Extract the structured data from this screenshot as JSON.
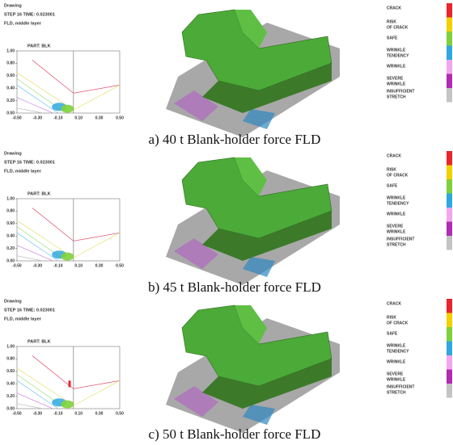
{
  "panels": [
    {
      "header": [
        "Drawing",
        "STEP 16  TIME:   0.023001",
        "FLD, middle layer"
      ],
      "part": "PART: BLK",
      "yticks": [
        "1.00",
        "0.80",
        "0.60",
        "0.40",
        "0.20",
        "0.00"
      ],
      "xticks": [
        "-0.50",
        "-0.30",
        "-0.10",
        "0.10",
        "0.30",
        "0.50"
      ],
      "caption": "a)  40 t Blank-holder force FLD"
    },
    {
      "header": [
        "Drawing",
        "STEP 16  TIME:   0.023001",
        "FLD, middle layer"
      ],
      "part": "PART: BLK",
      "yticks": [
        "1.00",
        "0.80",
        "0.60",
        "0.40",
        "0.20",
        "0.00"
      ],
      "xticks": [
        "-0.50",
        "-0.30",
        "-0.10",
        "0.10",
        "0.30",
        "0.50"
      ],
      "caption": "b)  45 t Blank-holder force FLD"
    },
    {
      "header": [
        "Drawing",
        "STEP 16  TIME:   0.023001",
        "FLD, middle layer"
      ],
      "part": "PART: BLK",
      "yticks": [
        "1.00",
        "0.80",
        "0.60",
        "0.40",
        "0.20",
        "0.00"
      ],
      "xticks": [
        "-0.50",
        "-0.30",
        "-0.10",
        "0.10",
        "0.30",
        "0.50"
      ],
      "caption": "c)  50 t Blank-holder force FLD"
    }
  ],
  "legend": [
    {
      "lines": [
        "CRACK"
      ],
      "color": "#e8262b"
    },
    {
      "lines": [
        "RISK",
        "OF CRACK"
      ],
      "color": "#f5d000"
    },
    {
      "lines": [
        "SAFE"
      ],
      "color": "#7fd13b"
    },
    {
      "lines": [
        "WRINKLE",
        "TENDENCY"
      ],
      "color": "#2fa8e0"
    },
    {
      "lines": [
        "WRINKLE"
      ],
      "color": "#f2a6ee"
    },
    {
      "lines": [
        "SEVERE",
        "WRINKLE"
      ],
      "color": "#b02cb0"
    },
    {
      "lines": [
        "INSUFFICIENT",
        "STRETCH"
      ],
      "color": "#c4c4c4"
    }
  ]
}
